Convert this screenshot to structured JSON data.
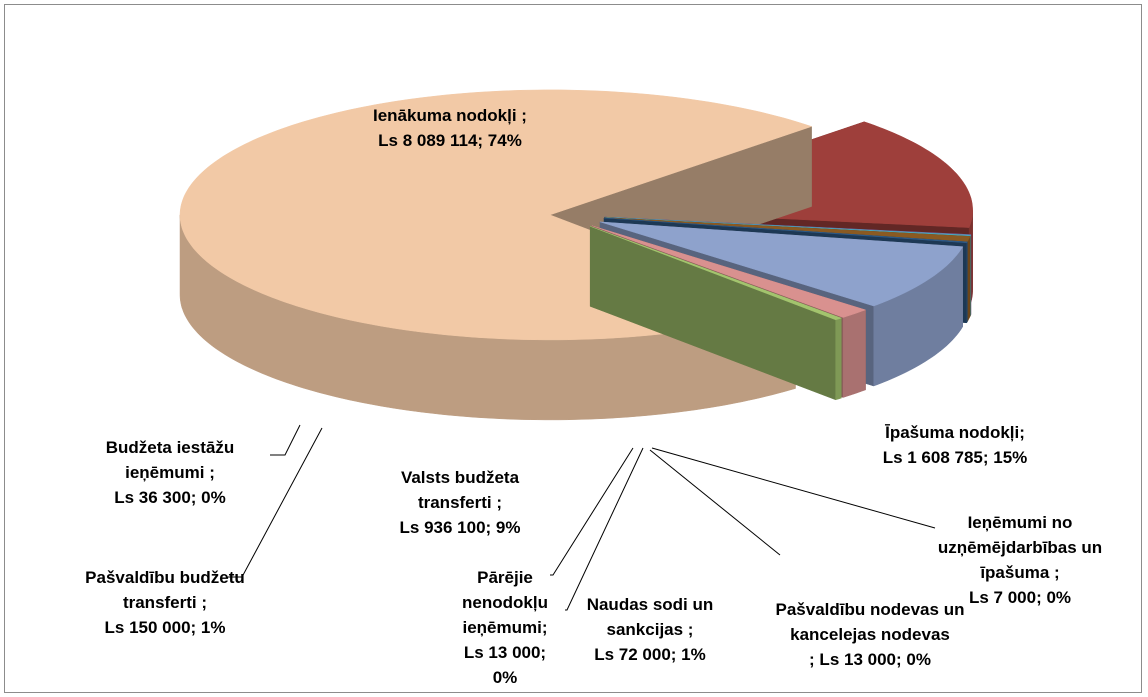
{
  "chart_data": {
    "type": "pie",
    "categories": [
      "Ienākuma nodokļi ;",
      "Īpašuma nodokļi;",
      "Ieņēmumi no uzņēmējdarbības un īpašuma ;",
      "Pašvaldību nodevas un kancelejas nodevas",
      "Naudas sodi un sankcijas ;",
      "Pārējie nenodokļu ieņēmumi;",
      "Valsts budžeta transferti ;",
      "Pašvaldību budžetu transferti ;",
      "Budžeta iestāžu ieņēmumi ;"
    ],
    "values": [
      8089114,
      1608785,
      7000,
      13000,
      72000,
      13000,
      936100,
      150000,
      36300
    ],
    "value_labels": [
      "Ls 8 089 114; 74%",
      "Ls 1 608 785; 15%",
      "Ls 7 000; 0%",
      "; Ls 13 000; 0%",
      "Ls 72 000; 1%",
      "Ls 13 000; 0%",
      "Ls 936 100; 9%",
      "Ls 150 000; 1%",
      "Ls 36 300; 0%"
    ],
    "colors": [
      "#f2c9a6",
      "#9e3f3b",
      "#7d68a8",
      "#4aa8c0",
      "#8a5a22",
      "#2f5b88",
      "#8ea2cc",
      "#d9918f",
      "#a3c46e"
    ]
  }
}
